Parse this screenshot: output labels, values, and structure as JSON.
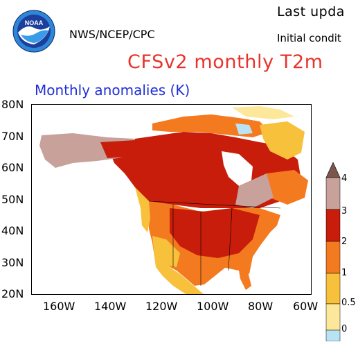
{
  "header": {
    "agency": "NWS/NCEP/CPC",
    "last_updated": "Last upda",
    "initial_conditions": "Initial condit",
    "title": "CFSv2 monthly T2m",
    "subtitle": "Monthly anomalies (K)"
  },
  "logo": {
    "text": "NOAA",
    "colors": {
      "outer": "#2e86d6",
      "inner": "#1c3f9e",
      "bird": "#ffffff"
    }
  },
  "map": {
    "type": "anomaly-map",
    "region": "North America",
    "lon_range": [
      -170,
      -60
    ],
    "lat_range": [
      20,
      80
    ],
    "x_ticks": [
      "160W",
      "140W",
      "120W",
      "100W",
      "80W",
      "60W"
    ],
    "y_ticks": [
      "80N",
      "70N",
      "60N",
      "50N",
      "40N",
      "30N",
      "20N"
    ],
    "ocean_color": "#ffffff"
  },
  "colorbar": {
    "labels": [
      "0",
      "0.5",
      "1",
      "2",
      "3",
      "4"
    ],
    "colors": {
      "0_to_0.5": "#fce79a",
      "0.5_to_1": "#f7c13c",
      "1_to_2": "#f47a20",
      "2_to_3": "#c81d0b",
      "3_to_4": "#c7a19a",
      "above_4": "#7b564d",
      "below_0": "#b9e3f3"
    }
  }
}
